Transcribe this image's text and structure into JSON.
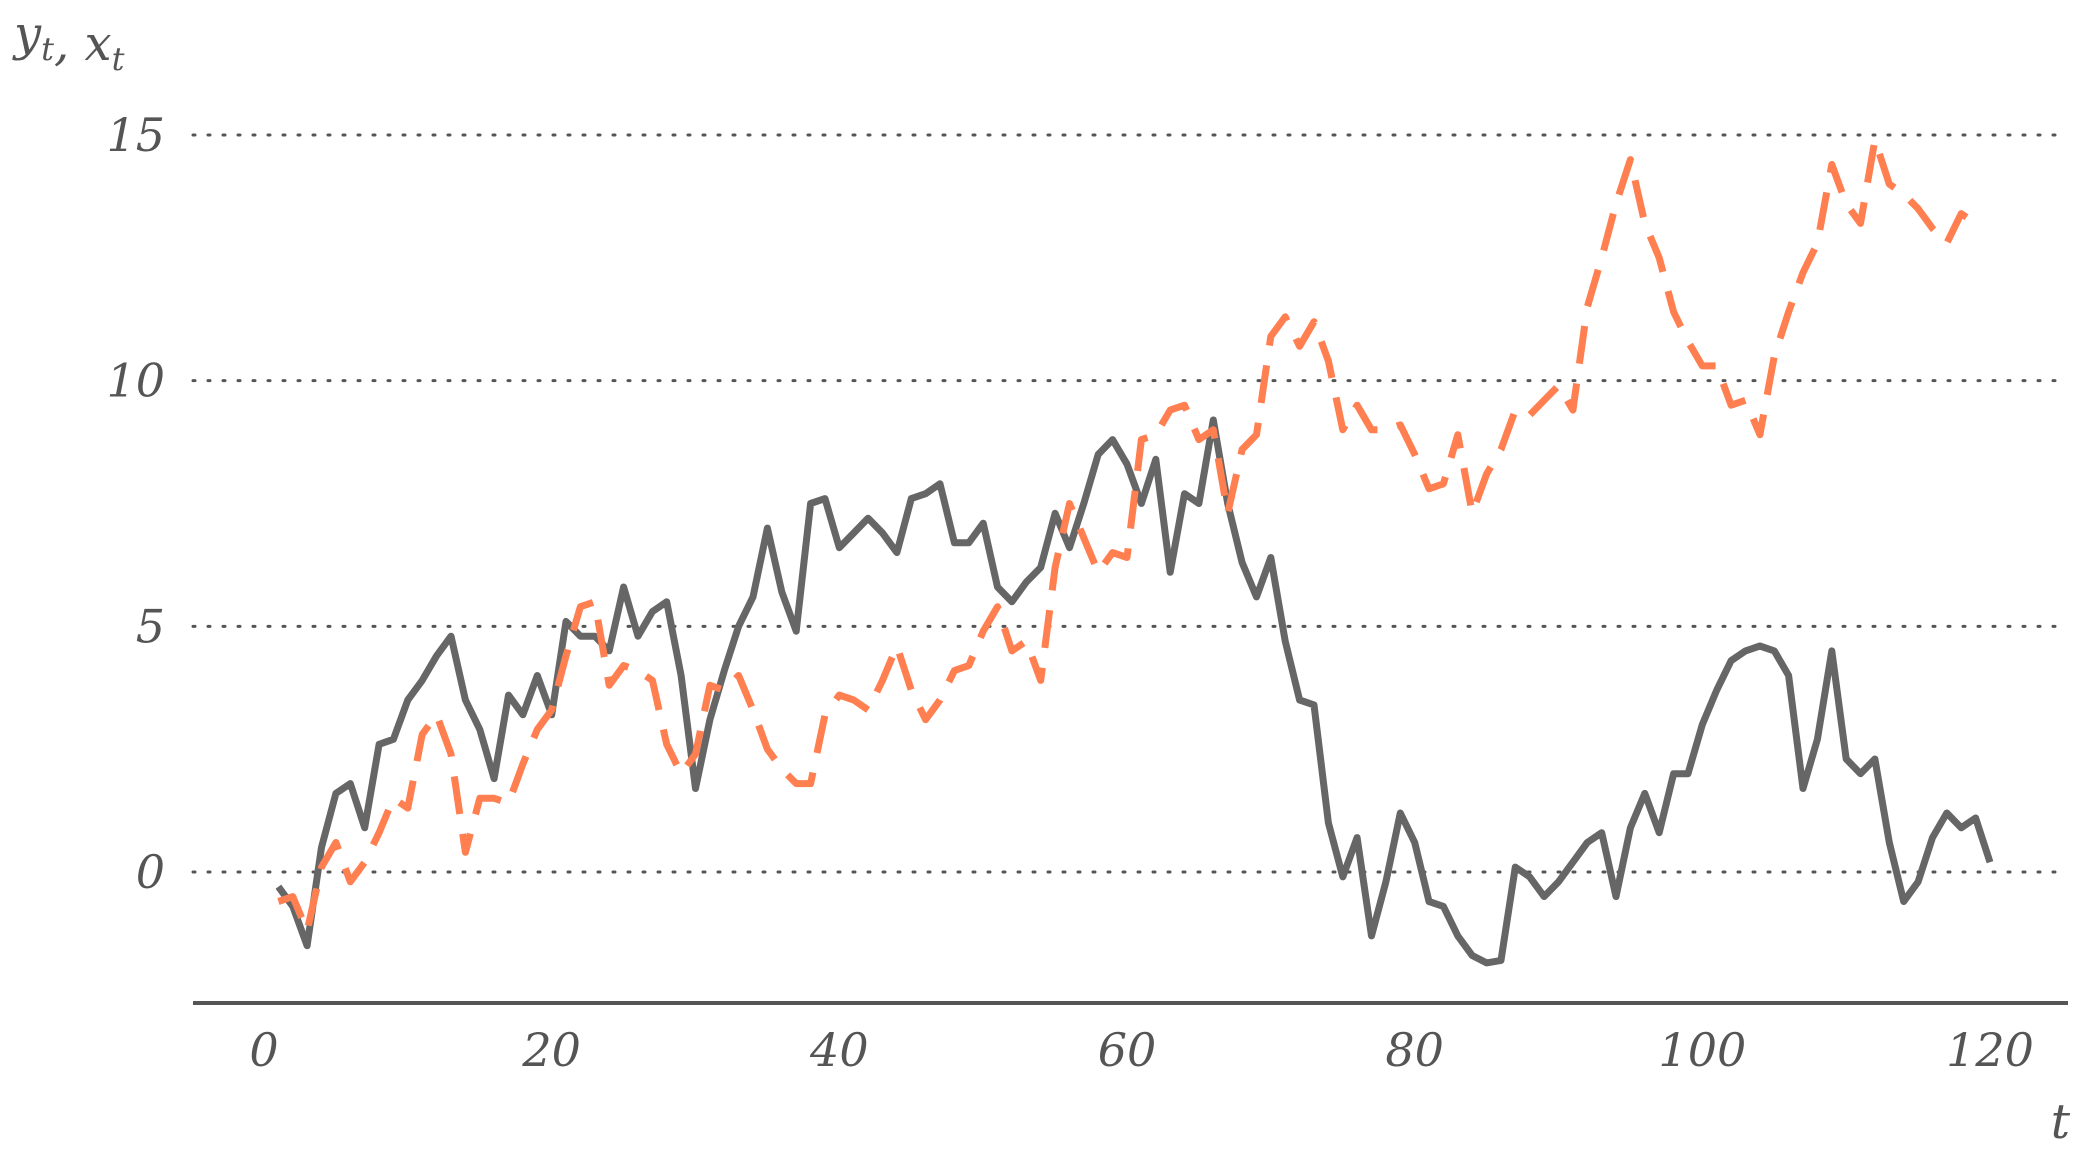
{
  "chart_data": {
    "type": "line",
    "title": "",
    "xlabel": "t",
    "ylabel": {
      "parts": [
        {
          "text": "y",
          "sub": "t"
        },
        {
          "text": ", x",
          "sub": "t"
        }
      ]
    },
    "xlim": [
      -5,
      125
    ],
    "ylim": [
      -2.7,
      17
    ],
    "xticks": [
      0,
      20,
      40,
      60,
      80,
      100,
      120
    ],
    "yticks": [
      0,
      5,
      10,
      15
    ],
    "grid": "horizontal dotted",
    "series": [
      {
        "color": "#666666",
        "style": "solid",
        "x_start": 1,
        "values": [
          -0.3,
          -0.7,
          -1.5,
          0.5,
          1.6,
          1.8,
          0.9,
          2.6,
          2.7,
          3.5,
          3.9,
          4.4,
          4.8,
          3.5,
          2.9,
          1.9,
          3.6,
          3.2,
          4.0,
          3.2,
          5.1,
          4.8,
          4.8,
          4.5,
          5.8,
          4.8,
          5.3,
          5.5,
          4.0,
          1.7,
          3.1,
          4.1,
          5.0,
          5.6,
          7.0,
          5.7,
          4.9,
          7.5,
          7.6,
          6.6,
          6.9,
          7.2,
          6.9,
          6.5,
          7.6,
          7.7,
          7.9,
          6.7,
          6.7,
          7.1,
          5.8,
          5.5,
          5.9,
          6.2,
          7.3,
          6.6,
          7.5,
          8.5,
          8.8,
          8.3,
          7.5,
          8.4,
          6.1,
          7.7,
          7.5,
          9.2,
          7.5,
          6.3,
          5.6,
          6.4,
          4.7,
          3.5,
          3.4,
          1.0,
          -0.1,
          0.7,
          -1.3,
          -0.2,
          1.2,
          0.6,
          -0.6,
          -0.7,
          -1.3,
          -1.7,
          -1.85,
          -1.8,
          0.1,
          -0.1,
          -0.5,
          -0.2,
          0.2,
          0.6,
          0.8,
          -0.5,
          0.9,
          1.6,
          0.8,
          2.0,
          2.0,
          3.0,
          3.7,
          4.3,
          4.5,
          4.6,
          4.5,
          4.0,
          1.7,
          2.7,
          4.5,
          2.3,
          2.0,
          2.3,
          0.6,
          -0.6,
          -0.2,
          0.7,
          1.2,
          0.9,
          1.1,
          0.2
        ]
      },
      {
        "color": "#ff7f50",
        "style": "dashed",
        "x_start": 1,
        "values": [
          -0.6,
          -0.5,
          -1.2,
          0.1,
          0.6,
          -0.2,
          0.2,
          0.8,
          1.5,
          1.3,
          2.8,
          3.2,
          2.4,
          0.4,
          1.5,
          1.5,
          1.4,
          2.2,
          2.9,
          3.3,
          4.4,
          5.4,
          5.5,
          3.8,
          4.2,
          4.1,
          3.9,
          2.6,
          2.0,
          2.4,
          3.8,
          3.7,
          4.0,
          3.3,
          2.5,
          2.1,
          1.8,
          1.8,
          3.2,
          3.6,
          3.5,
          3.3,
          3.9,
          4.6,
          3.7,
          3.1,
          3.5,
          4.1,
          4.2,
          4.9,
          5.4,
          4.5,
          4.7,
          3.9,
          6.2,
          7.5,
          6.8,
          6.1,
          6.5,
          6.4,
          8.8,
          8.9,
          9.4,
          9.5,
          8.8,
          9.0,
          7.3,
          8.6,
          8.9,
          10.9,
          11.3,
          10.7,
          11.2,
          10.4,
          9.0,
          9.5,
          9.0,
          9.0,
          9.1,
          8.5,
          7.8,
          7.9,
          8.9,
          7.3,
          8.1,
          8.6,
          9.4,
          9.3,
          9.6,
          9.9,
          9.4,
          11.5,
          12.5,
          13.6,
          14.5,
          13.2,
          12.5,
          11.4,
          10.8,
          10.3,
          10.3,
          9.5,
          9.6,
          8.9,
          10.5,
          11.4,
          12.2,
          12.8,
          14.4,
          13.6,
          13.2,
          14.9,
          14.0,
          13.8,
          13.5,
          13.1,
          12.8,
          13.4,
          13.2
        ]
      }
    ]
  }
}
